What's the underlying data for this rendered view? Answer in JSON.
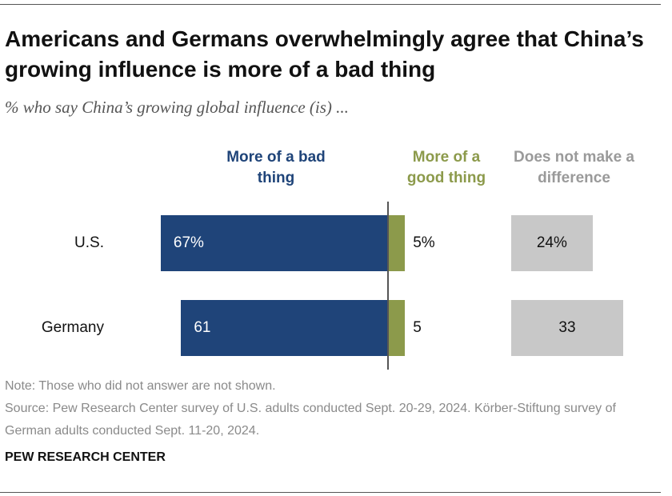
{
  "chart_data": {
    "type": "diverging_bar",
    "title": "Americans and Germans overwhelmingly agree that China’s growing influence is more of a bad thing",
    "subtitle": "% who say China’s growing global influence (is) ...",
    "categories": [
      "U.S.",
      "Germany"
    ],
    "series": [
      {
        "name": "More of a bad thing",
        "color": "#1f4479",
        "values": [
          67,
          61
        ],
        "value_labels": [
          "67%",
          "61"
        ]
      },
      {
        "name": "More of a good thing",
        "color": "#8c9a4b",
        "values": [
          5,
          5
        ],
        "value_labels": [
          "5%",
          "5"
        ]
      },
      {
        "name": "Does not make a difference",
        "color": "#c8c8c8",
        "values": [
          24,
          33
        ],
        "value_labels": [
          "24%",
          "33"
        ]
      }
    ],
    "note": "Note: Those who did not answer are not shown.",
    "source": "Source: Pew Research Center survey of U.S. adults conducted Sept. 20-29, 2024. Körber-Stiftung survey of German adults conducted Sept. 11-20, 2024.",
    "credit": "PEW RESEARCH CENTER"
  }
}
